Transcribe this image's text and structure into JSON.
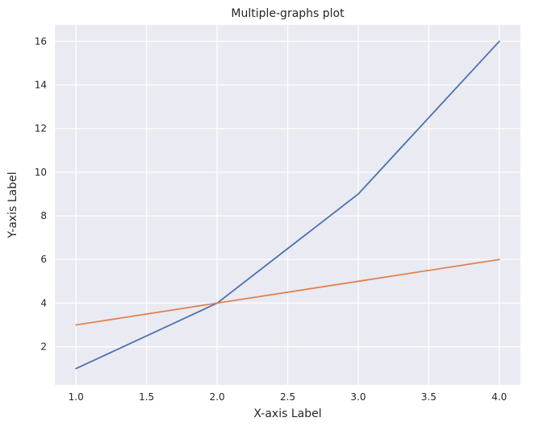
{
  "chart_data": {
    "type": "line",
    "title": "Multiple-graphs plot",
    "xlabel": "X-axis Label",
    "ylabel": "Y-axis Label",
    "x": [
      1.0,
      2.0,
      3.0,
      4.0
    ],
    "series": [
      {
        "values": [
          1,
          4,
          9,
          16
        ],
        "color": "#4c72b0"
      },
      {
        "values": [
          3,
          4,
          5,
          6
        ],
        "color": "#dd8452"
      }
    ],
    "xlim": [
      0.85,
      4.15
    ],
    "ylim": [
      0.25,
      16.75
    ],
    "xticks": [
      "1.0",
      "1.5",
      "2.0",
      "2.5",
      "3.0",
      "3.5",
      "4.0"
    ],
    "yticks": [
      "2",
      "4",
      "6",
      "8",
      "10",
      "12",
      "14",
      "16"
    ],
    "grid": true,
    "background_color": "#eaeaf2",
    "legend": false
  }
}
